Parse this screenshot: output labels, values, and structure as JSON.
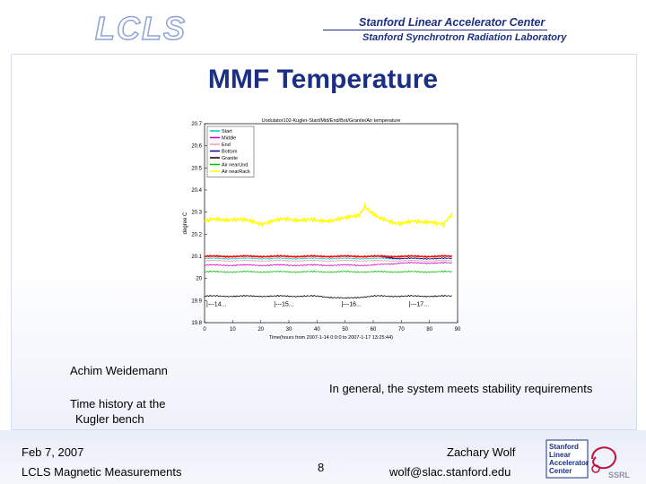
{
  "header": {
    "logo_text": "LCLS",
    "lab_name": "Stanford Linear Accelerator Center",
    "sublab_name": "Stanford Synchrotron Radiation Laboratory"
  },
  "slide": {
    "title": "MMF Temperature",
    "caption_author": "Achim Weidemann",
    "caption_history_line1": "Time history at the",
    "caption_history_line2": "Kugler bench",
    "caption_general": "In general, the system meets stability requirements"
  },
  "footer": {
    "date": "Feb 7, 2007",
    "project": "LCLS Magnetic Measurements",
    "page": "8",
    "author": "Zachary Wolf",
    "email": "wolf@slac.stanford.edu",
    "logo_lines": [
      "Stanford",
      "Linear",
      "Accelerator",
      "Center"
    ],
    "logo_mark": "SSRL"
  },
  "chart_data": {
    "type": "line",
    "title": "Undulator102-Kugler-Start/Mid/End/Bot/Granite/Air temperature",
    "xlabel": "Time(hours from 2007-1-14 0:0:0 to 2007-1-17 13:25:44)",
    "ylabel": "degree C",
    "xlim": [
      0,
      90
    ],
    "ylim": [
      19.8,
      20.7
    ],
    "xticks": [
      0,
      10,
      20,
      30,
      40,
      50,
      60,
      70,
      80,
      90
    ],
    "yticks": [
      19.8,
      19.9,
      20,
      20.1,
      20.2,
      20.3,
      20.4,
      20.5,
      20.6,
      20.7
    ],
    "legend_position": "top-left",
    "day_markers": [
      {
        "x": 0,
        "label": "|---14..."
      },
      {
        "x": 24,
        "label": "|---15..."
      },
      {
        "x": 48,
        "label": "|---16..."
      },
      {
        "x": 72,
        "label": "|---17..."
      }
    ],
    "series": [
      {
        "name": "Start",
        "color": "#00c8c8",
        "x": [
          0,
          10,
          20,
          30,
          40,
          50,
          60,
          70,
          80,
          88
        ],
        "values": [
          20.09,
          20.09,
          20.09,
          20.09,
          20.09,
          20.09,
          20.09,
          20.09,
          20.09,
          20.09
        ]
      },
      {
        "name": "Middle",
        "color": "#d000d0",
        "x": [
          0,
          10,
          20,
          30,
          40,
          50,
          60,
          70,
          80,
          88
        ],
        "values": [
          20.06,
          20.06,
          20.06,
          20.06,
          20.06,
          20.06,
          20.06,
          20.07,
          20.07,
          20.07
        ]
      },
      {
        "name": "End",
        "color": "#e8a0a0",
        "x": [
          0,
          10,
          20,
          30,
          40,
          50,
          60,
          70,
          80,
          88
        ],
        "values": [
          20.08,
          20.08,
          20.08,
          20.08,
          20.08,
          20.08,
          20.08,
          20.08,
          20.08,
          20.08
        ]
      },
      {
        "name": "Bottom",
        "color": "#000080",
        "x": [
          0,
          10,
          20,
          30,
          40,
          50,
          60,
          70,
          80,
          88
        ],
        "values": [
          20.1,
          20.1,
          20.1,
          20.1,
          20.1,
          20.1,
          20.1,
          20.09,
          20.09,
          20.09
        ]
      },
      {
        "name": "Granite",
        "color": "#000000",
        "x": [
          0,
          10,
          20,
          30,
          40,
          50,
          60,
          70,
          80,
          88
        ],
        "values": [
          19.92,
          19.92,
          19.92,
          19.92,
          19.92,
          19.91,
          19.92,
          19.92,
          19.92,
          19.92
        ]
      },
      {
        "name": "Air nearUnd",
        "color": "#00c000",
        "x": [
          0,
          10,
          20,
          30,
          40,
          50,
          60,
          70,
          80,
          88
        ],
        "values": [
          20.03,
          20.03,
          20.03,
          20.03,
          20.03,
          20.03,
          20.03,
          20.03,
          20.03,
          20.03
        ]
      },
      {
        "name": "Air nearRack",
        "color": "#ffff00",
        "x": [
          0,
          10,
          20,
          30,
          40,
          50,
          55,
          57,
          59,
          62,
          70,
          80,
          85,
          88
        ],
        "values": [
          20.26,
          20.27,
          20.25,
          20.27,
          20.26,
          20.27,
          20.29,
          20.33,
          20.3,
          20.27,
          20.25,
          20.26,
          20.24,
          20.29
        ]
      },
      {
        "name": "",
        "color": "#ff0000",
        "x": [
          0,
          10,
          20,
          30,
          40,
          50,
          60,
          70,
          80,
          88
        ],
        "values": [
          20.1,
          20.1,
          20.1,
          20.1,
          20.1,
          20.1,
          20.1,
          20.1,
          20.1,
          20.1
        ]
      }
    ]
  }
}
